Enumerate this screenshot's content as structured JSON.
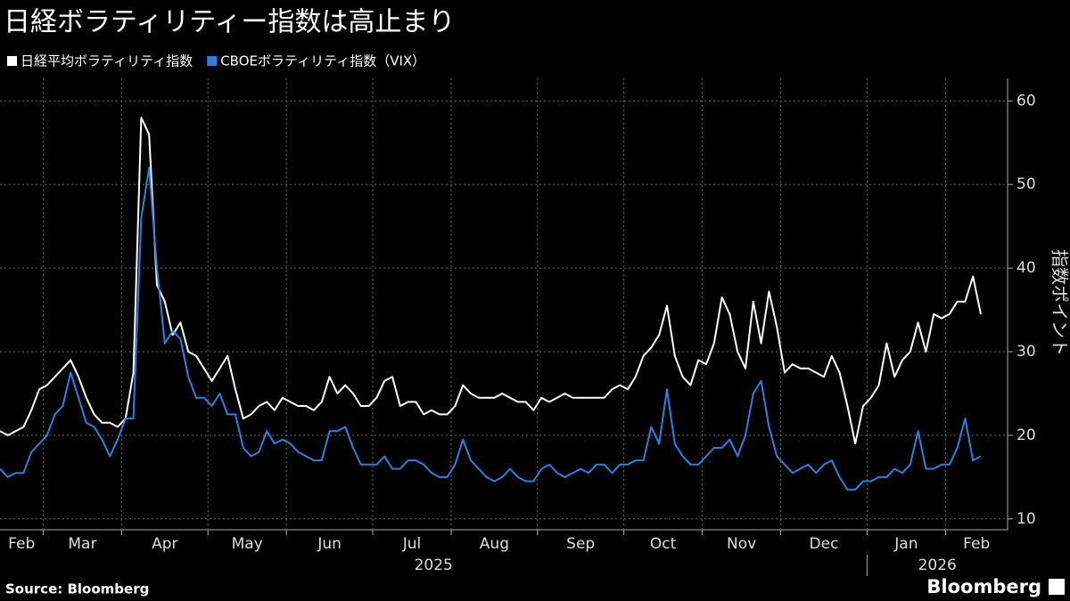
{
  "chart_data": {
    "type": "line",
    "title": "日経ボラティリティー指数は高止まり",
    "y_label": "指数ポイント",
    "source": "Source: Bloomberg",
    "logo": "Bloomberg",
    "years": [
      "2025",
      "2026"
    ],
    "categories": [
      "Feb",
      null,
      null,
      null,
      null,
      null,
      "Mar",
      null,
      null,
      null,
      null,
      null,
      null,
      null,
      null,
      null,
      "Apr",
      null,
      null,
      null,
      null,
      null,
      null,
      null,
      null,
      null,
      null,
      "May",
      null,
      null,
      null,
      null,
      null,
      null,
      null,
      null,
      null,
      "Jun",
      null,
      null,
      null,
      null,
      null,
      null,
      null,
      null,
      null,
      null,
      "Jul",
      null,
      null,
      null,
      null,
      null,
      null,
      null,
      null,
      null,
      "Aug",
      null,
      null,
      null,
      null,
      null,
      null,
      null,
      null,
      null,
      null,
      "Sep",
      null,
      null,
      null,
      null,
      null,
      null,
      null,
      null,
      null,
      null,
      "Oct",
      null,
      null,
      null,
      null,
      null,
      null,
      null,
      null,
      null,
      "Nov",
      null,
      null,
      null,
      null,
      null,
      null,
      null,
      null,
      null,
      "Dec",
      null,
      null,
      null,
      null,
      null,
      null,
      null,
      null,
      null,
      null,
      "Jan",
      null,
      null,
      null,
      null,
      null,
      null,
      null,
      null,
      null,
      "Feb",
      null,
      null,
      null,
      null
    ],
    "series": [
      {
        "name": "日経平均ボラティリティ指数",
        "color": "#ffffff",
        "values": [
          20.5,
          20,
          20.5,
          21,
          23,
          25.5,
          26,
          27,
          28,
          29,
          27,
          24.5,
          22.5,
          21.5,
          21.5,
          21,
          22,
          27.5,
          58,
          56,
          38,
          36,
          32,
          33.5,
          30,
          29.5,
          28,
          26.5,
          28,
          29.5,
          25.5,
          22,
          22.5,
          23.5,
          24,
          23,
          24.5,
          24,
          23.5,
          23.5,
          23,
          24,
          27,
          25,
          26,
          25,
          23.5,
          23.5,
          24.5,
          26.5,
          27,
          23.5,
          24,
          24,
          22.5,
          23,
          22.5,
          22.5,
          23.5,
          26,
          25,
          24.5,
          24.5,
          24.5,
          25,
          24.5,
          24,
          24,
          23,
          24.5,
          24,
          24.5,
          25,
          24.5,
          24.5,
          24.5,
          24.5,
          24.5,
          25.5,
          26,
          25.5,
          27,
          29.5,
          30.5,
          32,
          35.5,
          29.5,
          27,
          26,
          29,
          28.5,
          31,
          36.5,
          34.5,
          30,
          28,
          36,
          31,
          37.2,
          33,
          27.5,
          28.5,
          28,
          28,
          27.5,
          27,
          29.5,
          27.5,
          23.5,
          19,
          23.5,
          24.5,
          26,
          31,
          27,
          29,
          30,
          33.5,
          30,
          34.5,
          34,
          34.5,
          36,
          36,
          39,
          34.5
        ]
      },
      {
        "name": "CBOEボラティリティ指数（VIX）",
        "color": "#2f7fe0",
        "values": [
          16,
          15,
          15.5,
          15.5,
          18,
          19,
          20,
          22.5,
          23.5,
          27.5,
          24.5,
          21.5,
          21,
          19.5,
          17.5,
          19.5,
          22,
          22,
          46,
          52,
          40,
          31,
          32.5,
          31.5,
          27,
          24.5,
          24.5,
          23.5,
          25,
          22.5,
          22.5,
          18.5,
          17.5,
          18,
          20.5,
          19,
          19.5,
          19,
          18,
          17.5,
          17,
          17,
          20.5,
          20.5,
          21,
          18.5,
          16.5,
          16.5,
          16.5,
          17.5,
          16,
          16,
          17,
          17,
          16.5,
          15.5,
          15,
          15,
          16.5,
          19.5,
          17,
          16,
          15,
          14.5,
          15,
          16,
          15,
          14.5,
          14.5,
          16,
          16.5,
          15.5,
          15,
          15.5,
          16,
          15.5,
          16.5,
          16.5,
          15.5,
          16.5,
          16.5,
          17,
          17,
          21,
          19,
          25.5,
          19,
          17.5,
          16.5,
          16.5,
          17.5,
          18.5,
          18.5,
          19.5,
          17.5,
          20,
          25,
          26.5,
          21,
          17.5,
          16.5,
          15.5,
          16,
          16.5,
          15.5,
          16.5,
          17,
          15,
          13.5,
          13.5,
          14.5,
          14.5,
          15,
          15,
          16,
          15.5,
          16.5,
          20.5,
          16,
          16,
          16.5,
          16.5,
          18.5,
          22,
          17,
          17.5
        ]
      }
    ],
    "ylim": [
      8.7,
      62.7
    ],
    "yticks": [
      10,
      20,
      30,
      40,
      50,
      60
    ],
    "grid": true
  }
}
